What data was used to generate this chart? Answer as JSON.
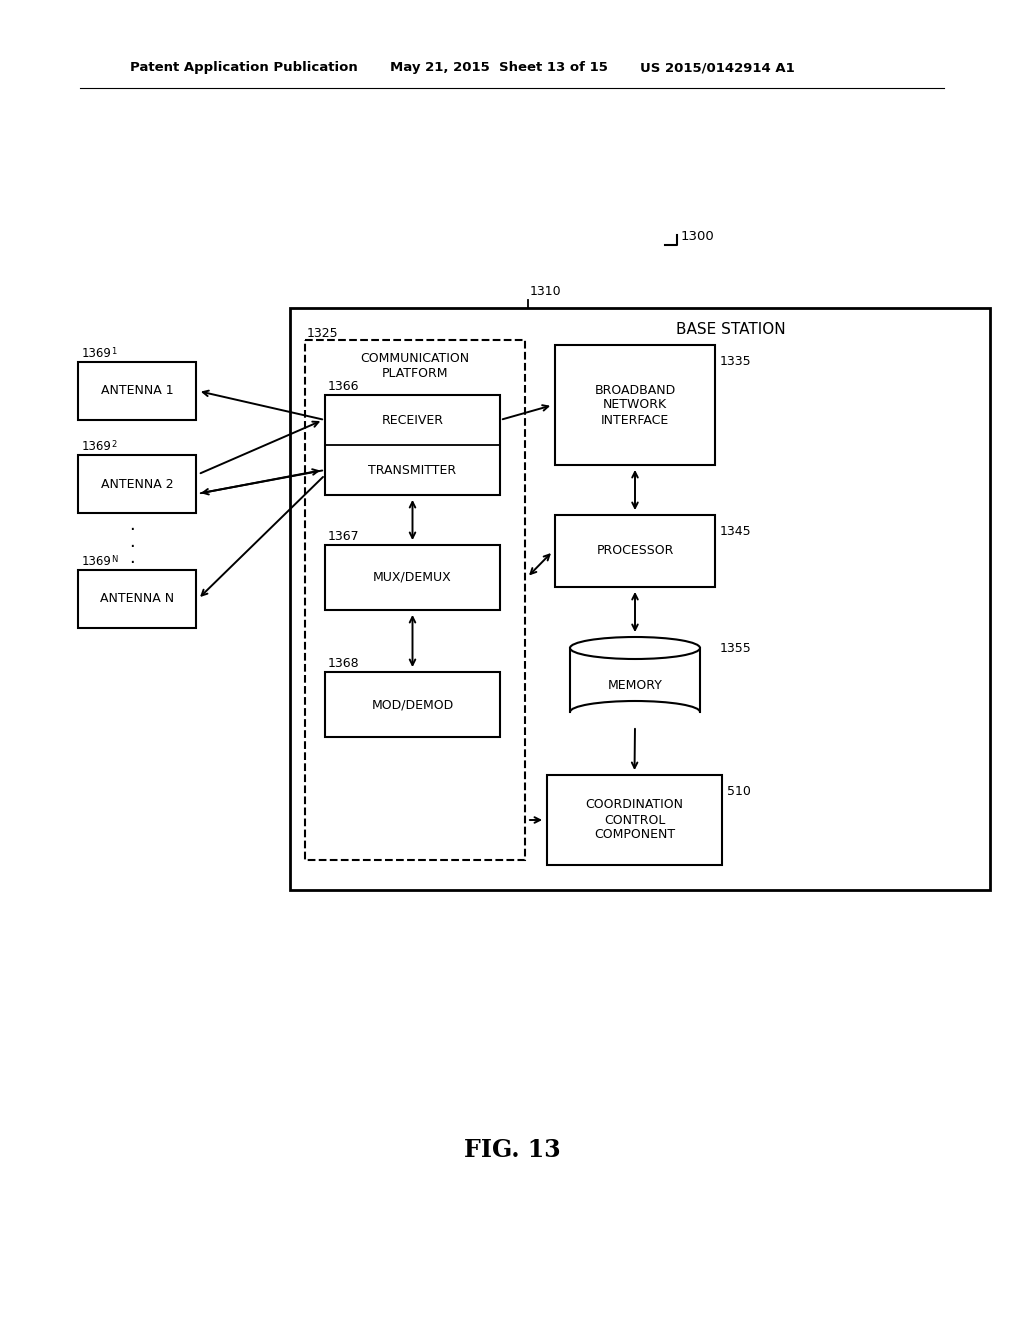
{
  "bg_color": "#ffffff",
  "header_left": "Patent Application Publication",
  "header_mid": "May 21, 2015  Sheet 13 of 15",
  "header_right": "US 2015/0142914 A1",
  "fig_label": "FIG. 13",
  "label_1300": "1300",
  "label_1310": "1310",
  "label_1325": "1325",
  "label_1366": "1366",
  "label_1367": "1367",
  "label_1368": "1368",
  "label_1335": "1335",
  "label_1345": "1345",
  "label_1355": "1355",
  "label_510": "510",
  "label_1369_1": "1369",
  "label_1369_2": "1369",
  "label_1369_N": "1369",
  "sub_1": "1",
  "sub_2": "2",
  "sub_N": "N",
  "antenna1_text": "ANTENNA 1",
  "antenna2_text": "ANTENNA 2",
  "antennaN_text": "ANTENNA N",
  "comm_platform_text": "COMMUNICATION\nPLATFORM",
  "base_station_text": "BASE STATION",
  "receiver_text": "RECEIVER",
  "transmitter_text": "TRANSMITTER",
  "muxdemux_text": "MUX/DEMUX",
  "moddemod_text": "MOD/DEMOD",
  "broadband_text": "BROADBAND\nNETWORK\nINTERFACE",
  "processor_text": "PROCESSOR",
  "memory_text": "MEMORY",
  "coord_text": "COORDINATION\nCONTROL\nCOMPONENT"
}
